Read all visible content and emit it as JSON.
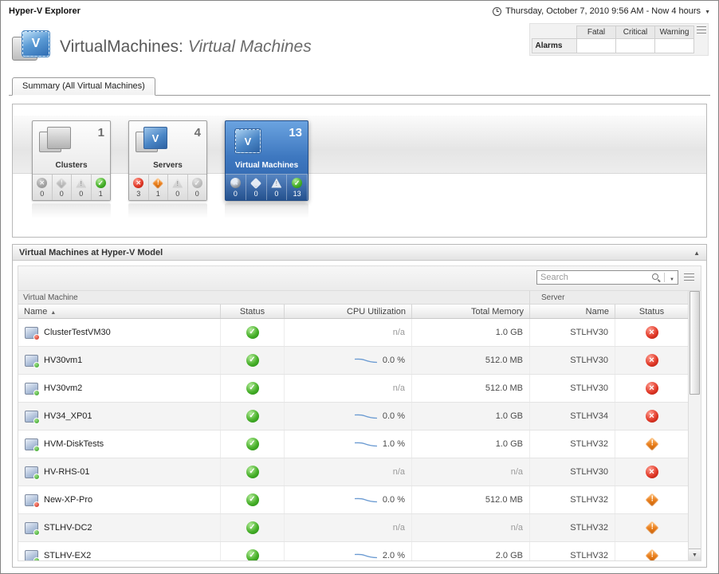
{
  "top_bar": {
    "title": "Hyper-V Explorer",
    "time_range": "Thursday, October 7, 2010 9:56 AM - Now 4 hours"
  },
  "header": {
    "title_prefix": "VirtualMachines:",
    "title_suffix": "Virtual Machines",
    "logo_letter": "V"
  },
  "alarms": {
    "label": "Alarms",
    "columns": [
      "Fatal",
      "Critical",
      "Warning"
    ],
    "values": [
      "",
      "",
      ""
    ]
  },
  "tabs": [
    {
      "label": "Summary (All Virtual Machines)"
    }
  ],
  "tiles": [
    {
      "name": "Clusters",
      "count": "1",
      "icon": "clusters",
      "selected": false,
      "statuses": [
        {
          "type": "fatal",
          "count": "0"
        },
        {
          "type": "critical",
          "count": "0"
        },
        {
          "type": "warning",
          "count": "0"
        },
        {
          "type": "normal",
          "count": "1"
        }
      ]
    },
    {
      "name": "Servers",
      "count": "4",
      "icon": "servers",
      "selected": false,
      "statuses": [
        {
          "type": "fatal",
          "count": "3"
        },
        {
          "type": "critical",
          "count": "1"
        },
        {
          "type": "warning",
          "count": "0"
        },
        {
          "type": "normal",
          "count": "0"
        }
      ]
    },
    {
      "name": "Virtual Machines",
      "count": "13",
      "icon": "virtual-machines",
      "selected": true,
      "statuses": [
        {
          "type": "fatal",
          "count": "0"
        },
        {
          "type": "critical",
          "count": "0"
        },
        {
          "type": "warning",
          "count": "0"
        },
        {
          "type": "normal",
          "count": "13"
        }
      ]
    }
  ],
  "panel": {
    "title": "Virtual Machines at Hyper-V Model",
    "search_placeholder": "Search"
  },
  "table": {
    "group_headers": [
      "Virtual Machine",
      "Server"
    ],
    "columns": [
      "Name",
      "Status",
      "CPU Utilization",
      "Total Memory",
      "Name",
      "Status"
    ],
    "sort_column": "Name",
    "sort_direction": "ascending",
    "rows": [
      {
        "name": "ClusterTestVM30",
        "vm_state": "red",
        "status": "normal",
        "cpu": "n/a",
        "memory": "1.0 GB",
        "server": "STLHV30",
        "server_status": "fatal"
      },
      {
        "name": "HV30vm1",
        "vm_state": "green",
        "status": "normal",
        "cpu": "0.0 %",
        "memory": "512.0 MB",
        "server": "STLHV30",
        "server_status": "fatal"
      },
      {
        "name": "HV30vm2",
        "vm_state": "green",
        "status": "normal",
        "cpu": "n/a",
        "memory": "512.0 MB",
        "server": "STLHV30",
        "server_status": "fatal"
      },
      {
        "name": "HV34_XP01",
        "vm_state": "green",
        "status": "normal",
        "cpu": "0.0 %",
        "memory": "1.0 GB",
        "server": "STLHV34",
        "server_status": "fatal"
      },
      {
        "name": "HVM-DiskTests",
        "vm_state": "green",
        "status": "normal",
        "cpu": "1.0 %",
        "memory": "1.0 GB",
        "server": "STLHV32",
        "server_status": "critical"
      },
      {
        "name": "HV-RHS-01",
        "vm_state": "green",
        "status": "normal",
        "cpu": "n/a",
        "memory": "n/a",
        "server": "STLHV30",
        "server_status": "fatal"
      },
      {
        "name": "New-XP-Pro",
        "vm_state": "red",
        "status": "normal",
        "cpu": "0.0 %",
        "memory": "512.0 MB",
        "server": "STLHV32",
        "server_status": "critical"
      },
      {
        "name": "STLHV-DC2",
        "vm_state": "green",
        "status": "normal",
        "cpu": "n/a",
        "memory": "n/a",
        "server": "STLHV32",
        "server_status": "critical"
      },
      {
        "name": "STLHV-EX2",
        "vm_state": "green",
        "status": "normal",
        "cpu": "2.0 %",
        "memory": "2.0 GB",
        "server": "STLHV32",
        "server_status": "critical"
      }
    ]
  }
}
